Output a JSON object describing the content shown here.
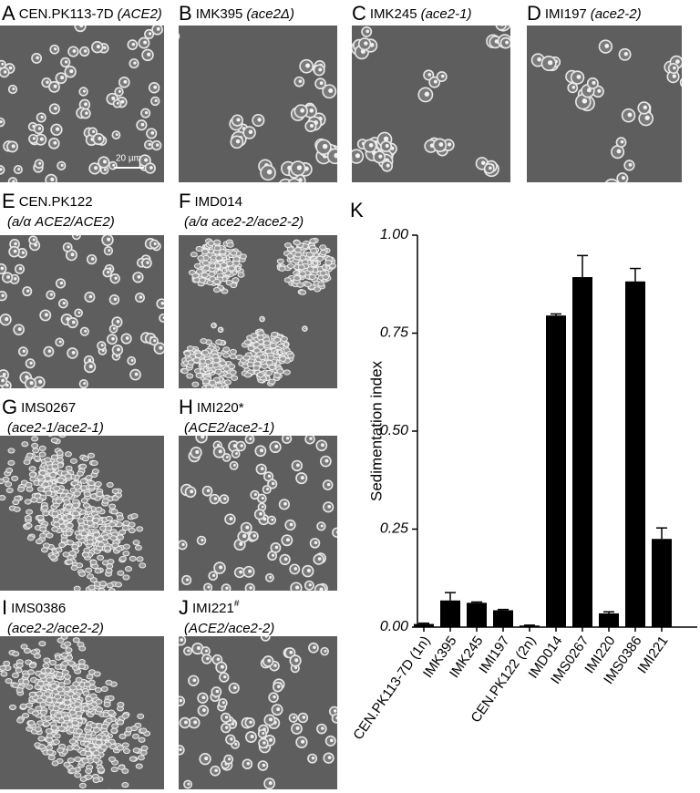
{
  "panels": [
    {
      "label": "A",
      "name": "CEN.PK113-7D",
      "genotype": "(ACE2)",
      "scale_bar": "20 µm"
    },
    {
      "label": "B",
      "name": "IMK395",
      "genotype": "(ace2Δ)"
    },
    {
      "label": "C",
      "name": "IMK245",
      "genotype": "(ace2-1)"
    },
    {
      "label": "D",
      "name": "IMI197",
      "genotype": "(ace2-2)"
    },
    {
      "label": "E",
      "name": "CEN.PK122",
      "genotype": "(a/α ACE2/ACE2)"
    },
    {
      "label": "F",
      "name": "IMD014",
      "genotype": "(a/α ace2-2/ace2-2)"
    },
    {
      "label": "G",
      "name": "IMS0267",
      "genotype": "(ace2-1/ace2-1)"
    },
    {
      "label": "H",
      "name": "IMI220*",
      "genotype": "(ACE2/ace2-1)"
    },
    {
      "label": "I",
      "name": "IMS0386",
      "genotype": "(ace2-2/ace2-2)"
    },
    {
      "label": "J",
      "name": "IMI221",
      "superscript": "#",
      "genotype": "(ACE2/ace2-2)"
    }
  ],
  "chart_data": {
    "type": "bar",
    "label": "K",
    "y_label": "Sedimentation index",
    "categories": [
      "CEN.PK113-7D (1n)",
      "IMK395",
      "IMK245",
      "IMI197",
      "CEN.PK122 (2n)",
      "IMD014",
      "IMS0267",
      "IMI220",
      "IMS0386",
      "IMI221"
    ],
    "values": [
      0.008,
      0.068,
      0.062,
      0.043,
      0.004,
      0.795,
      0.893,
      0.035,
      0.882,
      0.225
    ],
    "errors": [
      0.002,
      0.02,
      0.002,
      0.002,
      0.001,
      0.004,
      0.055,
      0.004,
      0.033,
      0.028
    ],
    "color": "#000000",
    "ylim": [
      0,
      1
    ],
    "yticks": [
      {
        "value": 0,
        "label": "0.00"
      },
      {
        "value": 0.25,
        "label": "0.25"
      },
      {
        "value": 0.5,
        "label": "0.50"
      },
      {
        "value": 0.75,
        "label": "0.75"
      },
      {
        "value": 1,
        "label": "1.00"
      }
    ]
  }
}
